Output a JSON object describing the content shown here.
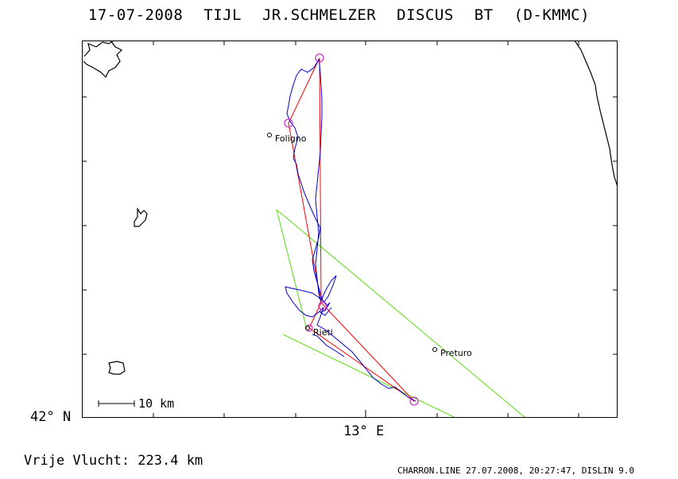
{
  "header": {
    "title": "17-07-2008   TIJL JR.SCHMELZER   DISCUS BT (D-KMMC)"
  },
  "map": {
    "lat_label": "42° N",
    "lon_label": "13° E",
    "scale_label": "10 km",
    "places": [
      {
        "name": "Foligno"
      },
      {
        "name": "Rieti"
      },
      {
        "name": "Preturo"
      }
    ],
    "colors": {
      "track": "#0000cc",
      "task": "#ff0000",
      "sector": "#66dd22",
      "turnpoint": "#cc33cc",
      "coast": "#000000"
    }
  },
  "footer": {
    "distance": "Vrije Vlucht:  223.4 km",
    "credit": "CHARRON.LINE 27.07.2008, 20:27:47, DISLIN 9.0"
  }
}
